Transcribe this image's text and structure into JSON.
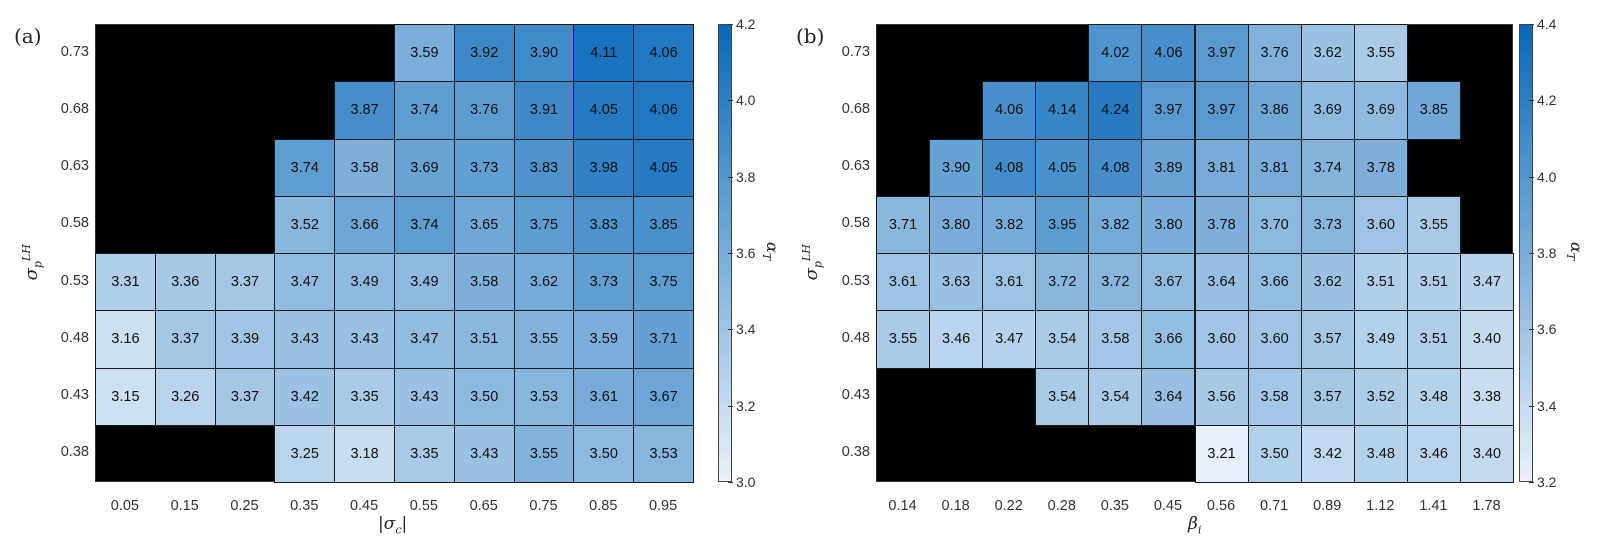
{
  "chart_data": [
    {
      "type": "heatmap",
      "panel": "(a)",
      "xlabel": "|σc|",
      "ylabel": "σp^LH",
      "colorbar_label": "αT",
      "colorbar_range": [
        3.0,
        4.2
      ],
      "colorbar_ticks": [
        "4.2",
        "4.0",
        "3.8",
        "3.6",
        "3.4",
        "3.2",
        "3.0"
      ],
      "x": [
        "0.05",
        "0.15",
        "0.25",
        "0.35",
        "0.45",
        "0.55",
        "0.65",
        "0.75",
        "0.85",
        "0.95"
      ],
      "y": [
        "0.73",
        "0.68",
        "0.63",
        "0.58",
        "0.53",
        "0.48",
        "0.43",
        "0.38"
      ],
      "values": [
        [
          null,
          null,
          null,
          null,
          null,
          3.59,
          3.92,
          3.9,
          4.11,
          4.06
        ],
        [
          null,
          null,
          null,
          null,
          3.87,
          3.74,
          3.76,
          3.91,
          4.05,
          4.06
        ],
        [
          null,
          null,
          null,
          3.74,
          3.58,
          3.69,
          3.73,
          3.83,
          3.98,
          4.05
        ],
        [
          null,
          null,
          null,
          3.52,
          3.66,
          3.74,
          3.65,
          3.75,
          3.83,
          3.85
        ],
        [
          3.31,
          3.36,
          3.37,
          3.47,
          3.49,
          3.49,
          3.58,
          3.62,
          3.73,
          3.75
        ],
        [
          3.16,
          3.37,
          3.39,
          3.43,
          3.43,
          3.47,
          3.51,
          3.55,
          3.59,
          3.71
        ],
        [
          3.15,
          3.26,
          3.37,
          3.42,
          3.35,
          3.43,
          3.5,
          3.53,
          3.61,
          3.67
        ],
        [
          null,
          null,
          null,
          3.25,
          3.18,
          3.35,
          3.43,
          3.55,
          3.5,
          3.53
        ]
      ],
      "missing_color": "#000000"
    },
    {
      "type": "heatmap",
      "panel": "(b)",
      "xlabel": "βi",
      "ylabel": "σp^LH",
      "colorbar_label": "αT",
      "colorbar_range": [
        3.2,
        4.4
      ],
      "colorbar_ticks": [
        "4.4",
        "4.2",
        "4.0",
        "3.8",
        "3.6",
        "3.4",
        "3.2"
      ],
      "x": [
        "0.14",
        "0.18",
        "0.22",
        "0.28",
        "0.35",
        "0.45",
        "0.56",
        "0.71",
        "0.89",
        "1.12",
        "1.41",
        "1.78"
      ],
      "y": [
        "0.73",
        "0.68",
        "0.63",
        "0.58",
        "0.53",
        "0.48",
        "0.43",
        "0.38"
      ],
      "values": [
        [
          null,
          null,
          null,
          null,
          4.02,
          4.06,
          3.97,
          3.76,
          3.62,
          3.55,
          null,
          null
        ],
        [
          null,
          null,
          4.06,
          4.14,
          4.24,
          3.97,
          3.97,
          3.86,
          3.69,
          3.69,
          3.85,
          null
        ],
        [
          null,
          3.9,
          4.08,
          4.05,
          4.08,
          3.89,
          3.81,
          3.81,
          3.74,
          3.78,
          null,
          null
        ],
        [
          3.71,
          3.8,
          3.82,
          3.95,
          3.82,
          3.8,
          3.78,
          3.7,
          3.73,
          3.6,
          3.55,
          null
        ],
        [
          3.61,
          3.63,
          3.61,
          3.72,
          3.72,
          3.67,
          3.64,
          3.66,
          3.62,
          3.51,
          3.51,
          3.47
        ],
        [
          3.55,
          3.46,
          3.47,
          3.54,
          3.58,
          3.66,
          3.6,
          3.6,
          3.57,
          3.49,
          3.51,
          3.4
        ],
        [
          null,
          null,
          null,
          3.54,
          3.54,
          3.64,
          3.56,
          3.58,
          3.57,
          3.52,
          3.48,
          3.38
        ],
        [
          null,
          null,
          null,
          null,
          null,
          null,
          3.21,
          3.5,
          3.42,
          3.48,
          3.46,
          3.4
        ]
      ],
      "missing_color": "#000000"
    }
  ],
  "colormap": {
    "low": "#eaf2fa",
    "high": "#0868b8"
  },
  "panels": {
    "a": {
      "label": "(a)",
      "xlabel_main": "|σ",
      "xlabel_sub": "c",
      "xlabel_end": "|",
      "ylabel_main": "σ",
      "ylabel_sup": "LH",
      "ylabel_sub": "p",
      "cb_main": "α",
      "cb_sub": "T"
    },
    "b": {
      "label": "(b)",
      "xlabel_main": "β",
      "xlabel_sub": "i",
      "ylabel_main": "σ",
      "ylabel_sup": "LH",
      "ylabel_sub": "p",
      "cb_main": "α",
      "cb_sub": "T"
    }
  }
}
